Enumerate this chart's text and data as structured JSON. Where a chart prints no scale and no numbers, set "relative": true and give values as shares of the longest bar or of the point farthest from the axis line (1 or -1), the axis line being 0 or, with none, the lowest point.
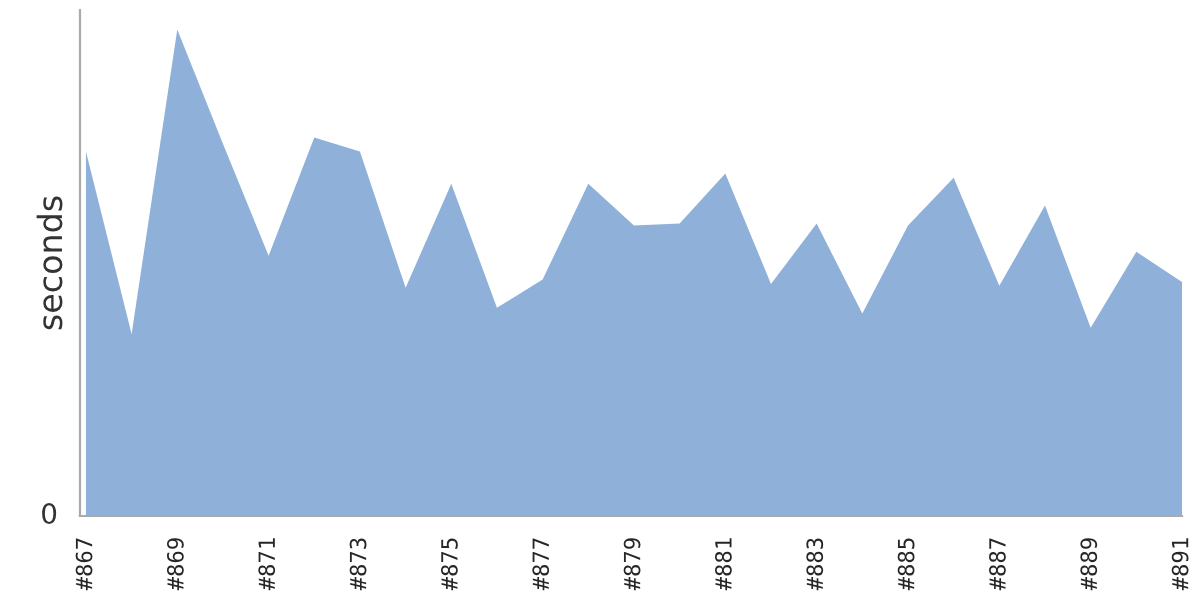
{
  "chart_data": {
    "type": "area",
    "ylabel": "seconds",
    "relative": true,
    "grid": false,
    "legend": false,
    "categories": [
      "#867",
      null,
      "#869",
      null,
      "#871",
      null,
      "#873",
      null,
      "#875",
      null,
      "#877",
      null,
      "#879",
      null,
      "#881",
      null,
      "#883",
      null,
      "#885",
      null,
      "#887",
      null,
      "#889",
      null,
      "#891"
    ],
    "series": [
      {
        "color": "#8fb1d9",
        "values": [
          0.749,
          0.374,
          1,
          0.765,
          0.535,
          0.778,
          0.749,
          0.469,
          0.683,
          0.428,
          0.486,
          0.683,
          0.597,
          0.601,
          0.704,
          0.477,
          0.601,
          0.416,
          0.597,
          0.695,
          0.473,
          0.638,
          0.387,
          0.543,
          0.481
        ]
      }
    ],
    "annotations": [
      "0"
    ]
  }
}
